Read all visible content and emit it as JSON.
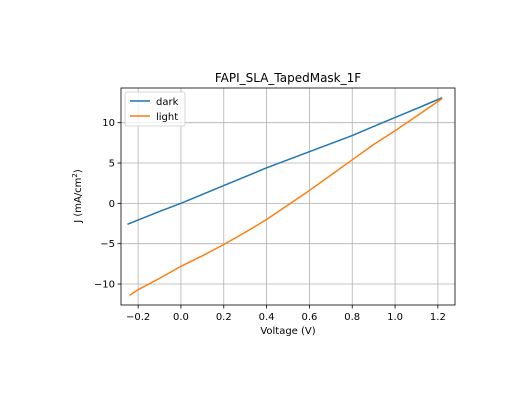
{
  "chart_data": {
    "type": "line",
    "title": "FAPI_SLA_TapedMask_1F",
    "xlabel": "Voltage (V)",
    "ylabel_main": "J (mA/cm",
    "ylabel_sup": "2",
    "ylabel_close": ")",
    "xlim": [
      -0.28,
      1.28
    ],
    "ylim": [
      -12.6,
      14.3
    ],
    "xticks": [
      -0.2,
      0.0,
      0.2,
      0.4,
      0.6,
      0.8,
      1.0,
      1.2
    ],
    "xtick_labels": [
      "−0.2",
      "0.0",
      "0.2",
      "0.4",
      "0.6",
      "0.8",
      "1.0",
      "1.2"
    ],
    "yticks": [
      -10,
      -5,
      0,
      5,
      10
    ],
    "ytick_labels": [
      "−10",
      "−5",
      "0",
      "5",
      "10"
    ],
    "grid": true,
    "legend_position": "top-left",
    "series": [
      {
        "name": "dark",
        "color": "#1f77b4",
        "x": [
          -0.25,
          -0.1,
          0.0,
          0.2,
          0.4,
          0.6,
          0.8,
          0.95,
          1.05,
          1.15,
          1.22
        ],
        "y": [
          -2.6,
          -1.0,
          0.0,
          2.2,
          4.4,
          6.4,
          8.4,
          10.1,
          11.2,
          12.3,
          13.1
        ]
      },
      {
        "name": "light",
        "color": "#ff7f0e",
        "x": [
          -0.24,
          -0.2,
          -0.1,
          0.0,
          0.1,
          0.2,
          0.3,
          0.4,
          0.5,
          0.6,
          0.7,
          0.8,
          0.9,
          1.0,
          1.1,
          1.22
        ],
        "y": [
          -11.4,
          -10.7,
          -9.3,
          -7.8,
          -6.5,
          -5.1,
          -3.6,
          -2.0,
          -0.2,
          1.6,
          3.5,
          5.4,
          7.3,
          9.0,
          10.8,
          13.0
        ]
      }
    ]
  }
}
